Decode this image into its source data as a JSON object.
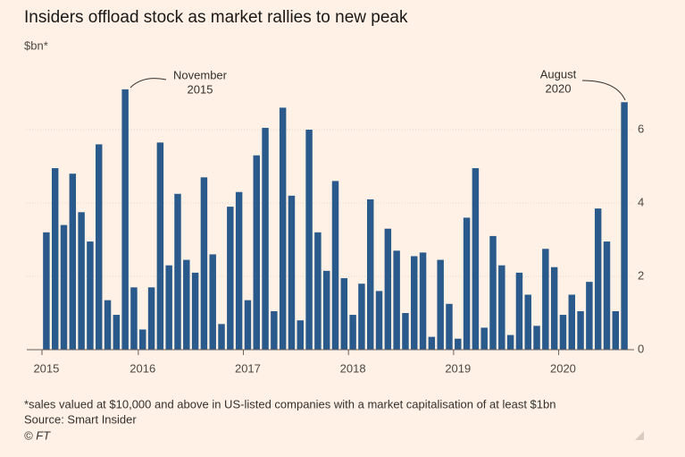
{
  "chart_data": {
    "type": "bar",
    "title": "Insiders offload stock as market rallies to new peak",
    "subtitle": "$bn*",
    "categories": [
      "2015",
      null,
      null,
      null,
      null,
      null,
      null,
      null,
      null,
      null,
      null,
      "2016",
      null,
      null,
      null,
      null,
      null,
      null,
      null,
      null,
      null,
      null,
      null,
      "2017",
      null,
      null,
      null,
      null,
      null,
      null,
      null,
      null,
      null,
      null,
      null,
      "2018",
      null,
      null,
      null,
      null,
      null,
      null,
      null,
      null,
      null,
      null,
      null,
      "2019",
      null,
      null,
      null,
      null,
      null,
      null,
      null,
      null,
      null,
      null,
      null,
      "2020",
      null,
      null,
      null,
      null,
      null,
      null,
      null
    ],
    "values": [
      3.2,
      4.95,
      3.4,
      4.8,
      3.75,
      2.95,
      5.6,
      1.35,
      0.95,
      7.1,
      1.7,
      0.55,
      1.7,
      5.65,
      2.3,
      4.25,
      2.45,
      2.1,
      4.7,
      2.6,
      0.7,
      3.9,
      4.3,
      1.35,
      5.3,
      6.05,
      1.05,
      6.6,
      4.2,
      0.8,
      6.0,
      3.2,
      2.15,
      4.6,
      1.95,
      0.95,
      1.8,
      4.1,
      1.6,
      3.3,
      2.7,
      1.0,
      2.55,
      2.65,
      0.35,
      2.45,
      1.25,
      0.3,
      3.6,
      4.95,
      0.6,
      3.1,
      2.3,
      0.4,
      2.1,
      1.5,
      0.65,
      2.75,
      2.25,
      0.95,
      1.5,
      1.05,
      1.85,
      3.85,
      2.95,
      1.05,
      6.75
    ],
    "color": "#2a5a8c",
    "ylim": [
      0,
      7.2
    ],
    "yticks": [
      0,
      2,
      4,
      6
    ],
    "grid": true,
    "annotations": [
      {
        "line1": "November",
        "line2": "2015"
      },
      {
        "line1": "August",
        "line2": "2020"
      }
    ],
    "footnote": "*sales valued at $10,000 and above in US-listed companies with a market capitalisation of at least $1bn",
    "source": "Source: Smart Insider",
    "credit": "© FT"
  }
}
